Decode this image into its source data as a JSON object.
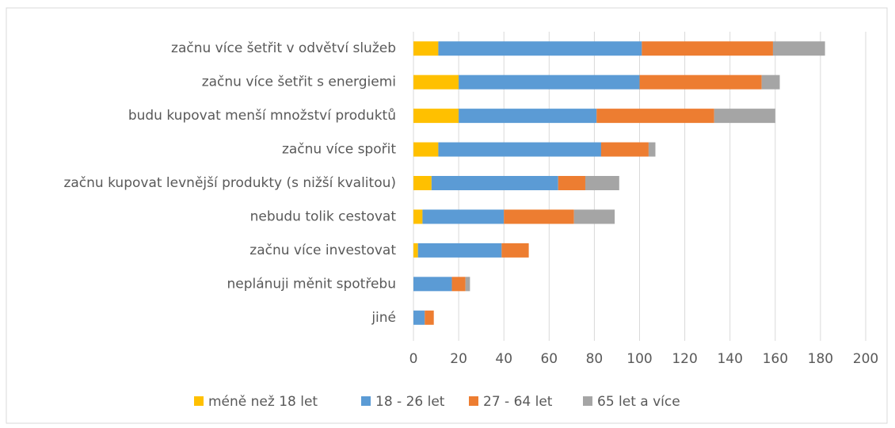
{
  "chart_data": {
    "type": "stacked_barh",
    "categories": [
      "začnu více šetřit v odvětví služeb",
      "začnu více šetřit s energiemi",
      "budu kupovat menší množství produktů",
      "začnu více spořit",
      "začnu kupovat levnější produkty (s nižší kvalitou)",
      "nebudu tolik cestovat",
      "začnu více investovat",
      "neplánuji měnit spotřebu",
      "jiné"
    ],
    "series": [
      {
        "name": "méně než 18 let",
        "color": "#ffc000",
        "values": [
          11,
          20,
          20,
          11,
          8,
          4,
          2,
          0,
          0
        ]
      },
      {
        "name": "18 - 26 let",
        "color": "#5b9bd5",
        "values": [
          90,
          80,
          61,
          72,
          56,
          36,
          37,
          17,
          5
        ]
      },
      {
        "name": "27 - 64 let",
        "color": "#ed7d31",
        "values": [
          58,
          54,
          52,
          21,
          12,
          31,
          12,
          6,
          4
        ]
      },
      {
        "name": "65 let a více",
        "color": "#a5a5a5",
        "values": [
          23,
          8,
          27,
          3,
          15,
          18,
          0,
          2,
          0
        ]
      }
    ],
    "xlim": [
      0,
      200
    ],
    "xticks": [
      0,
      20,
      40,
      60,
      80,
      100,
      120,
      140,
      160,
      180,
      200
    ],
    "grid": true,
    "legend": "bottom"
  }
}
